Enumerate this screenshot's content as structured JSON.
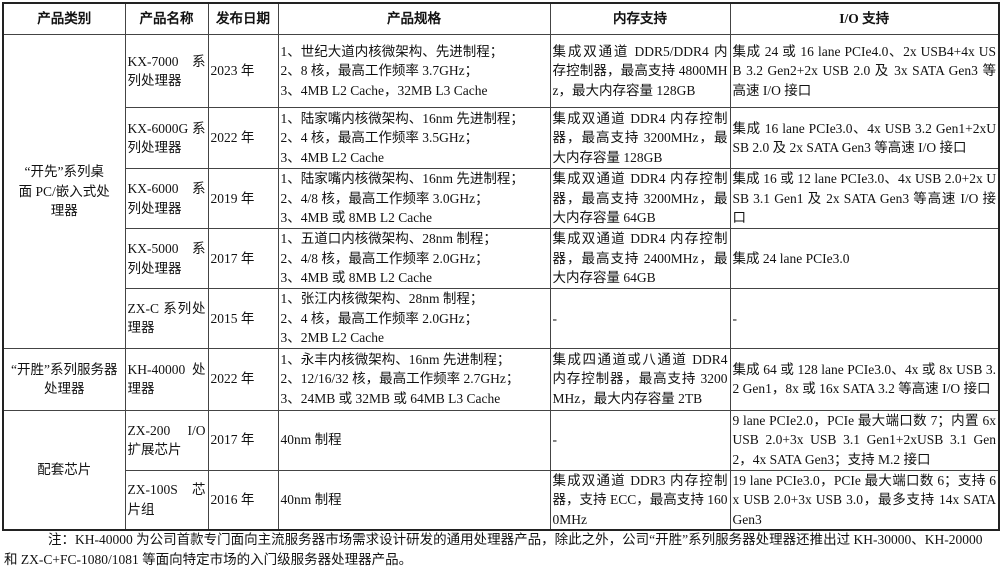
{
  "headers": [
    "产品类别",
    "产品名称",
    "发布日期",
    "产品规格",
    "内存支持",
    "I/O 支持"
  ],
  "groups": [
    {
      "category": "“开先”系列桌面 PC/嵌入式处理器"
    },
    {
      "category": "“开胜”系列服务器处理器"
    },
    {
      "category": "配套芯片"
    }
  ],
  "rows": [
    {
      "name": "KX-7000 系列处理器",
      "date": "2023 年",
      "spec": [
        "1、世纪大道内核微架构、先进制程；",
        "2、8 核，最高工作频率 3.7GHz；",
        "3、4MB L2 Cache，32MB L3 Cache"
      ],
      "memory": "集成双通道 DDR5/DDR4 内存控制器，最高支持 4800MHz，最大内存容量 128GB",
      "io": "集成 24 或 16 lane PCIe4.0、2x USB4+4x USB 3.2 Gen2+2x USB 2.0 及 3x SATA Gen3 等高速 I/O 接口"
    },
    {
      "name": "KX-6000G 系列处理器",
      "date": "2022 年",
      "spec": [
        "1、陆家嘴内核微架构、16nm 先进制程；",
        "2、4 核，最高工作频率 3.5GHz；",
        "3、4MB L2 Cache"
      ],
      "memory": "集成双通道 DDR4 内存控制器，最高支持 3200MHz，最大内存容量 128GB",
      "io": "集成 16 lane PCIe3.0、4x USB 3.2 Gen1+2xUSB 2.0 及 2x SATA Gen3 等高速 I/O 接口"
    },
    {
      "name": "KX-6000 系列处理器",
      "date": "2019 年",
      "spec": [
        "1、陆家嘴内核微架构、16nm 先进制程；",
        "2、4/8 核，最高工作频率 3.0GHz；",
        "3、4MB 或 8MB L2 Cache"
      ],
      "memory": "集成双通道 DDR4 内存控制器，最高支持 3200MHz，最大内存容量 64GB",
      "io": "集成 16 或 12 lane PCIe3.0、4x USB 2.0+2x USB 3.1 Gen1 及 2x SATA Gen3 等高速 I/O 接口"
    },
    {
      "name": "KX-5000 系列处理器",
      "date": "2017 年",
      "spec": [
        "1、五道口内核微架构、28nm 制程；",
        "2、4/8 核，最高工作频率 2.0GHz；",
        "3、4MB 或 8MB L2 Cache"
      ],
      "memory": "集成双通道 DDR4 内存控制器，最高支持 2400MHz，最大内存容量 64GB",
      "io": "集成 24 lane PCIe3.0"
    },
    {
      "name": "ZX-C 系列处理器",
      "date": "2015 年",
      "spec": [
        "1、张江内核微架构、28nm 制程；",
        "2、4 核，最高工作频率 2.0GHz；",
        "3、2MB L2 Cache"
      ],
      "memory": "-",
      "io": "-"
    },
    {
      "name": "KH-40000 处理器",
      "date": "2022 年",
      "spec": [
        "1、永丰内核微架构、16nm 先进制程；",
        "2、12/16/32 核，最高工作频率 2.7GHz；",
        "3、24MB 或 32MB 或 64MB L3 Cache"
      ],
      "memory": "集成四通道或八通道 DDR4 内存控制器，最高支持 3200MHz，最大内存容量 2TB",
      "io": "集成 64 或 128 lane PCIe3.0、4x 或 8x USB 3.2 Gen1，8x 或 16x SATA 3.2 等高速 I/O 接口"
    },
    {
      "name": "ZX-200 I/O 扩展芯片",
      "date": "2017 年",
      "spec": [
        "40nm 制程"
      ],
      "memory": "-",
      "io": "9 lane PCIe2.0，PCIe 最大端口数 7；内置 6x USB 2.0+3x USB 3.1 Gen1+2xUSB 3.1 Gen2，4x SATA Gen3；支持 M.2 接口"
    },
    {
      "name": "ZX-100S 芯片组",
      "date": "2016 年",
      "spec": [
        "40nm 制程"
      ],
      "memory": "集成双通道 DDR3 内存控制器，支持 ECC，最高支持 1600MHz",
      "io": "19 lane PCIe3.0，PCIe 最大端口数 6；支持 6x USB 2.0+3x USB 3.0，最多支持 14x SATA Gen3"
    }
  ],
  "footnote": "注：KH-40000 为公司首款专门面向主流服务器市场需求设计研发的通用处理器产品，除此之外，公司“开胜”系列服务器处理器还推出过 KH-30000、KH-20000 和 ZX-C+FC-1080/1081 等面向特定市场的入门级服务器处理器产品。"
}
